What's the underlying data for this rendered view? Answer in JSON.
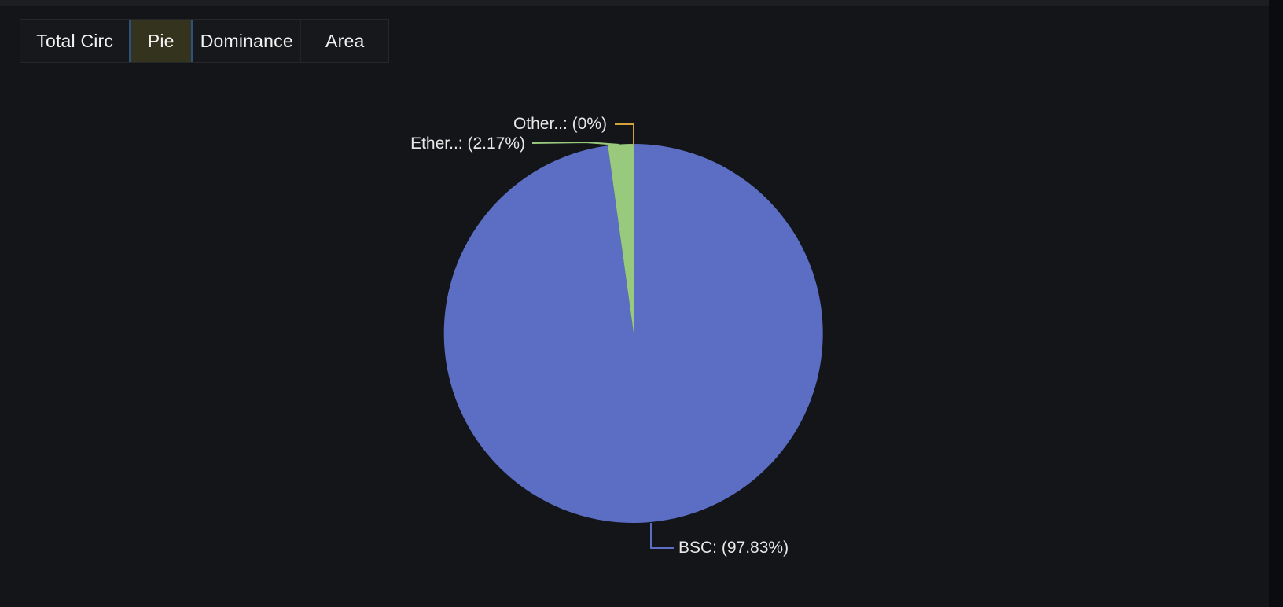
{
  "tabs": [
    {
      "label": "Total Circ",
      "active": false
    },
    {
      "label": "Pie",
      "active": true
    },
    {
      "label": "Dominance",
      "active": false
    },
    {
      "label": "Area",
      "active": false
    }
  ],
  "chart_data": {
    "type": "pie",
    "title": "",
    "legend_position": "none",
    "label_style": "callout-lines",
    "start_angle_deg": 90,
    "direction": "clockwise",
    "slices": [
      {
        "name": "BSC",
        "value_pct": 97.83,
        "label_display": "BSC: (97.83%)",
        "color": "#5b6ec4"
      },
      {
        "name": "Ether..",
        "value_pct": 2.17,
        "label_display": "Ether..: (2.17%)",
        "color": "#98c97d"
      },
      {
        "name": "Other..",
        "value_pct": 0,
        "label_display": "Other..: (0%)",
        "color": "#d2a33c"
      }
    ]
  },
  "colors": {
    "background": "#141519",
    "tab_active_bg": "#34331e",
    "tab_active_border": "#2b517c",
    "label_text": "#e8e8e8"
  }
}
